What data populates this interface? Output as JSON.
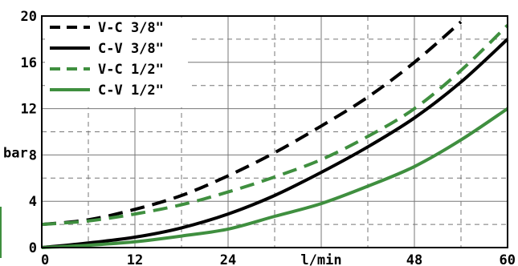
{
  "chart_data": {
    "type": "line",
    "title": "",
    "xlabel": "l/min",
    "ylabel": "bar",
    "xlim": [
      0,
      60
    ],
    "ylim": [
      0,
      20
    ],
    "x_ticks": [
      "0",
      "12",
      "24",
      "l/min",
      "48",
      "60"
    ],
    "x_tick_values": [
      0,
      12,
      24,
      36,
      48,
      60
    ],
    "y_ticks": [
      "0",
      "4",
      "8",
      "12",
      "16",
      "20"
    ],
    "y_tick_values": [
      0,
      4,
      8,
      12,
      16,
      20
    ],
    "y_label_tick_value": 8,
    "grid": true,
    "legend_position": "top-left",
    "colors": {
      "black": "#000000",
      "green": "#3f8f3f",
      "grid": "#777777"
    },
    "series": [
      {
        "name": "V-C 3/8\"",
        "color": "#000000",
        "dash": true,
        "x": [
          0,
          6,
          12,
          18,
          24,
          30,
          36,
          42,
          48,
          54
        ],
        "y": [
          2.0,
          2.4,
          3.3,
          4.5,
          6.2,
          8.2,
          10.5,
          13.0,
          16.0,
          19.5
        ]
      },
      {
        "name": "C-V 3/8\"",
        "color": "#000000",
        "dash": false,
        "x": [
          0,
          6,
          12,
          18,
          24,
          30,
          36,
          42,
          48,
          54,
          60
        ],
        "y": [
          0.0,
          0.4,
          0.9,
          1.7,
          2.9,
          4.5,
          6.5,
          8.7,
          11.2,
          14.3,
          18.0
        ]
      },
      {
        "name": "V-C 1/2\"",
        "color": "#3f8f3f",
        "dash": true,
        "x": [
          0,
          6,
          12,
          18,
          24,
          30,
          36,
          42,
          48,
          54,
          60
        ],
        "y": [
          2.0,
          2.3,
          2.9,
          3.7,
          4.8,
          6.1,
          7.6,
          9.6,
          12.0,
          15.3,
          19.2
        ]
      },
      {
        "name": "C-V 1/2\"",
        "color": "#3f8f3f",
        "dash": false,
        "x": [
          0,
          6,
          12,
          18,
          24,
          30,
          36,
          42,
          48,
          54,
          60
        ],
        "y": [
          0.0,
          0.2,
          0.5,
          1.0,
          1.6,
          2.7,
          3.8,
          5.3,
          7.0,
          9.3,
          12.0
        ]
      }
    ]
  }
}
